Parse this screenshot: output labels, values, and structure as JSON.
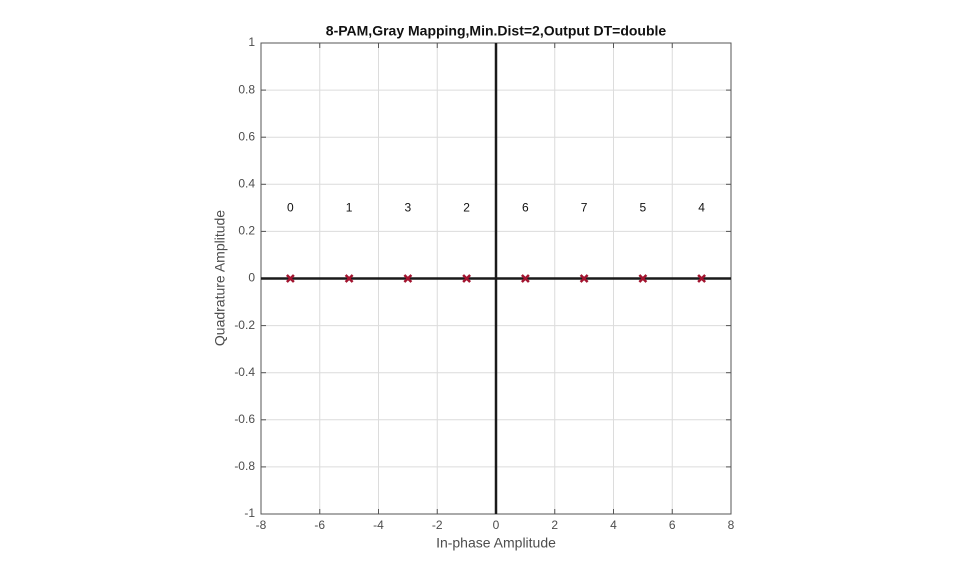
{
  "chart_data": {
    "type": "scatter",
    "title": "8-PAM,Gray Mapping,Min.Dist=2,Output DT=double",
    "xlabel": "In-phase Amplitude",
    "ylabel": "Quadrature Amplitude",
    "x": [
      -7,
      -5,
      -3,
      -1,
      1,
      3,
      5,
      7
    ],
    "values": [
      0,
      0,
      0,
      0,
      0,
      0,
      0,
      0
    ],
    "point_labels": [
      "0",
      "1",
      "3",
      "2",
      "6",
      "7",
      "5",
      "4"
    ],
    "color": "#a2142f",
    "xlim": [
      -8,
      8
    ],
    "xticks": [
      -8,
      -6,
      -4,
      -2,
      0,
      2,
      4,
      6,
      8
    ],
    "ylim": [
      -1,
      1
    ],
    "yticks": [
      -1,
      -0.8,
      -0.6,
      -0.4,
      -0.2,
      0,
      0.2,
      0.4,
      0.6,
      0.8,
      1
    ],
    "grid": true
  }
}
